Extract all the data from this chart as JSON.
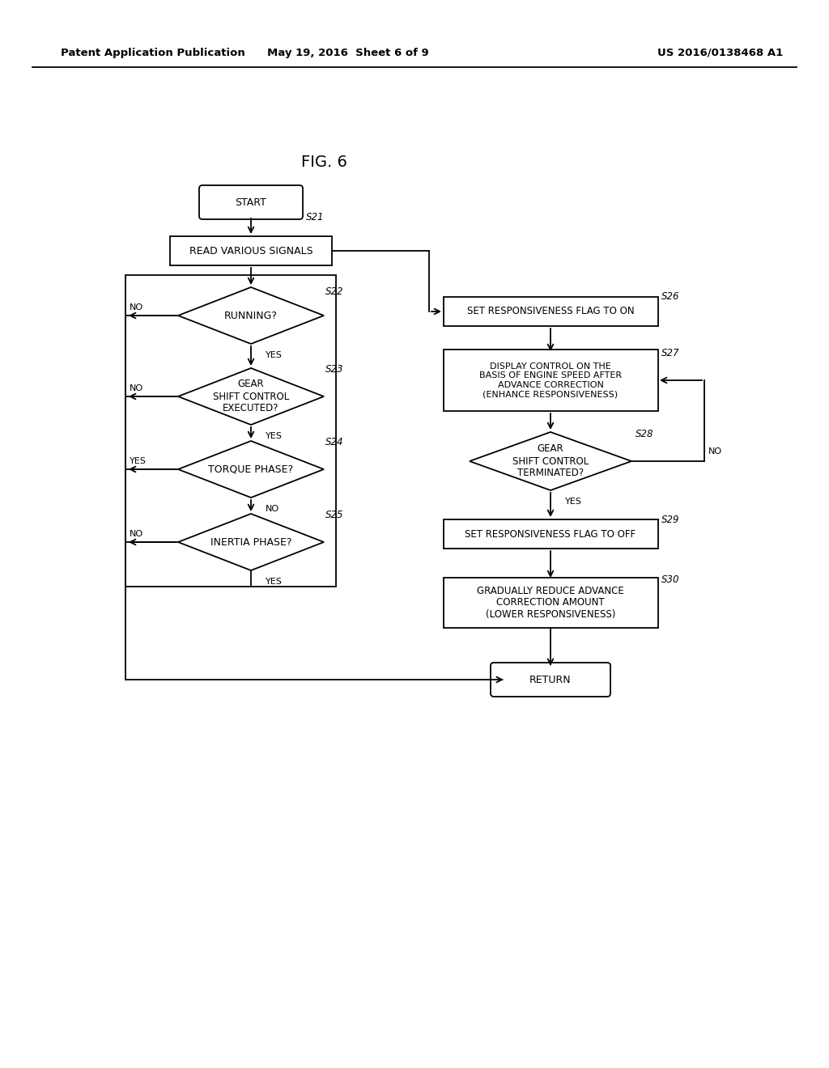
{
  "bg_color": "#ffffff",
  "header_left": "Patent Application Publication",
  "header_mid": "May 19, 2016  Sheet 6 of 9",
  "header_right": "US 2016/0138468 A1",
  "fig_label": "FIG. 6"
}
